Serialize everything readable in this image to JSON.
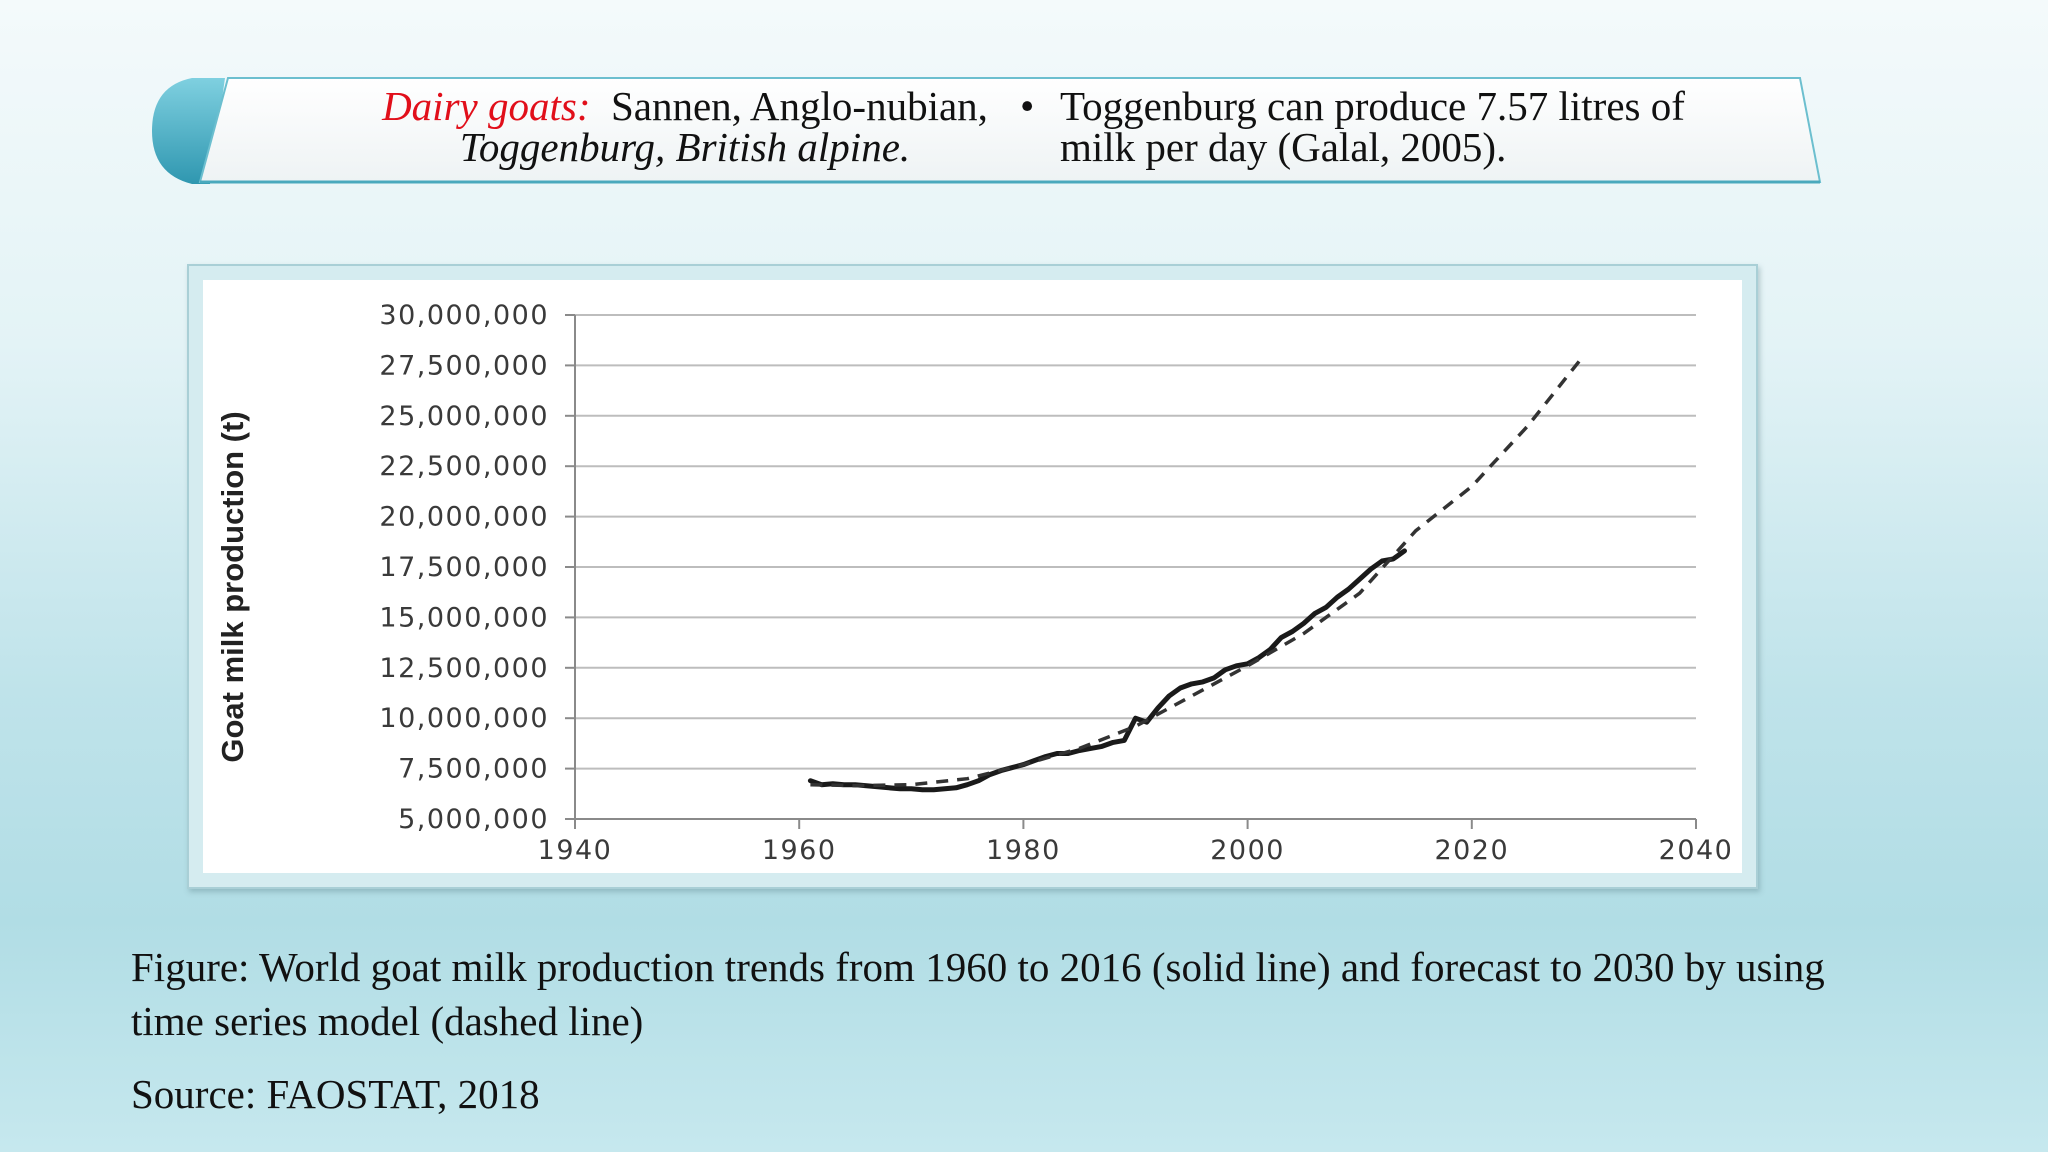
{
  "banner": {
    "left": {
      "label": "Dairy goats:",
      "line1_rest": "Sannen, Anglo-nubian,",
      "line2": "Toggenburg, British alpine."
    },
    "right": {
      "bullet": "•",
      "line1": "Toggenburg can produce 7.57 litres of",
      "line2": "milk per day (Galal, 2005)."
    },
    "accent_color": "#4db3c9",
    "label_color": "#e10f1a"
  },
  "chart_data": {
    "type": "line",
    "title": "",
    "xlabel": "",
    "ylabel": "Goat milk production (t)",
    "xlim": [
      1940,
      2040
    ],
    "ylim": [
      5000000,
      30000000
    ],
    "x_ticks": [
      "1940",
      "1960",
      "1980",
      "2000",
      "2020",
      "2040"
    ],
    "y_ticks": [
      "5,000,000",
      "7,500,000",
      "10,000,000",
      "12,500,000",
      "15,000,000",
      "17,500,000",
      "20,000,000",
      "22,500,000",
      "25,000,000",
      "27,500,000",
      "30,000,000"
    ],
    "grid": "horizontal",
    "series": [
      {
        "style": "solid",
        "x": [
          1961,
          1962,
          1963,
          1964,
          1965,
          1966,
          1967,
          1968,
          1969,
          1970,
          1971,
          1972,
          1973,
          1974,
          1975,
          1976,
          1977,
          1978,
          1979,
          1980,
          1981,
          1982,
          1983,
          1984,
          1985,
          1986,
          1987,
          1988,
          1989,
          1990,
          1991,
          1992,
          1993,
          1994,
          1995,
          1996,
          1997,
          1998,
          1999,
          2000,
          2001,
          2002,
          2003,
          2004,
          2005,
          2006,
          2007,
          2008,
          2009,
          2010,
          2011,
          2012,
          2013,
          2014
        ],
        "values": [
          6900000,
          6700000,
          6750000,
          6700000,
          6700000,
          6650000,
          6600000,
          6550000,
          6500000,
          6500000,
          6450000,
          6450000,
          6500000,
          6550000,
          6700000,
          6900000,
          7200000,
          7400000,
          7550000,
          7700000,
          7900000,
          8100000,
          8250000,
          8250000,
          8400000,
          8500000,
          8600000,
          8800000,
          8900000,
          10000000,
          9800000,
          10500000,
          11100000,
          11500000,
          11700000,
          11800000,
          12000000,
          12400000,
          12600000,
          12700000,
          13000000,
          13400000,
          14000000,
          14300000,
          14700000,
          15200000,
          15500000,
          16000000,
          16400000,
          16900000,
          17400000,
          17800000,
          17900000,
          18300000
        ]
      },
      {
        "style": "dashed",
        "x": [
          1961,
          1965,
          1970,
          1975,
          1980,
          1985,
          1990,
          1995,
          2000,
          2005,
          2010,
          2015,
          2020,
          2025,
          2030
        ],
        "values": [
          6700000,
          6650000,
          6700000,
          7000000,
          7700000,
          8500000,
          9600000,
          11100000,
          12600000,
          14200000,
          16200000,
          19300000,
          21500000,
          24500000,
          28000000
        ]
      }
    ]
  },
  "caption": {
    "line1": "Figure: World goat milk production trends from 1960 to 2016 (solid line) and forecast to 2030 by using",
    "line2": "time series model (dashed line)"
  },
  "source": "Source: FAOSTAT, 2018"
}
